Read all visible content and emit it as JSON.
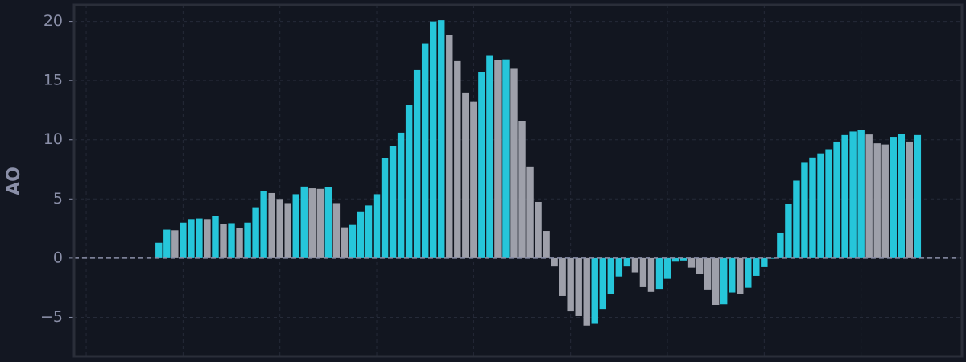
{
  "chart_data": {
    "type": "bar",
    "ylabel": "AO",
    "values": [
      null,
      null,
      null,
      null,
      null,
      null,
      null,
      null,
      null,
      1.3,
      2.4,
      2.35,
      3.0,
      3.3,
      3.35,
      3.3,
      3.55,
      2.9,
      2.95,
      2.55,
      3.0,
      4.3,
      5.65,
      5.5,
      5.0,
      4.65,
      5.4,
      6.05,
      5.9,
      5.85,
      6.0,
      4.65,
      2.6,
      2.8,
      3.95,
      4.45,
      5.4,
      8.45,
      9.5,
      10.6,
      12.95,
      15.9,
      18.1,
      20.0,
      20.1,
      18.85,
      16.65,
      14.0,
      13.2,
      15.7,
      17.15,
      16.75,
      16.8,
      16.0,
      11.55,
      7.75,
      4.75,
      2.3,
      -0.7,
      -3.2,
      -4.5,
      -4.9,
      -5.7,
      -5.55,
      -4.3,
      -3.0,
      -1.55,
      -0.7,
      -1.2,
      -2.45,
      -2.85,
      -2.6,
      -1.75,
      -0.3,
      -0.2,
      -0.8,
      -1.35,
      -2.65,
      -3.95,
      -3.9,
      -2.9,
      -3.0,
      -2.5,
      -1.5,
      -0.75,
      -0.05,
      2.1,
      4.55,
      6.55,
      8.05,
      8.5,
      8.85,
      9.2,
      9.85,
      10.4,
      10.7,
      10.8,
      10.45,
      9.7,
      9.6,
      10.25,
      10.5,
      9.85,
      10.4
    ],
    "up_color": "#26c6da",
    "down_color": "#9ea0aa",
    "xlim": [
      -1.5,
      108.5
    ],
    "xticks": [
      0,
      12,
      24,
      36,
      48,
      60,
      72,
      84,
      96
    ],
    "ylim": [
      -8.3,
      21.4
    ],
    "yticks": [
      {
        "value": -5,
        "label": "−5"
      },
      0,
      5,
      10,
      15,
      20
    ],
    "grid": true
  }
}
